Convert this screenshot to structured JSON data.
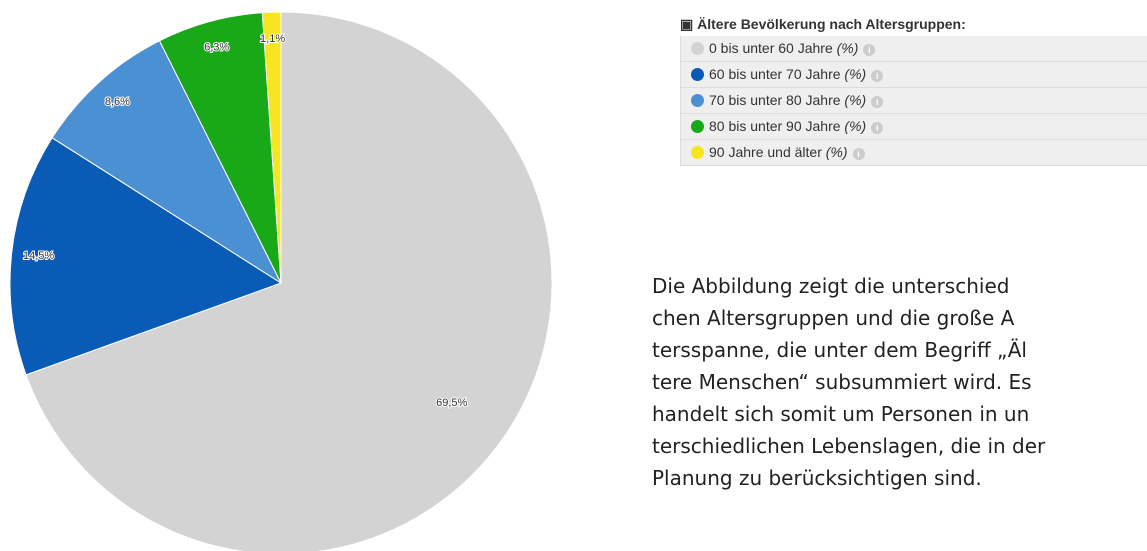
{
  "chart_data": {
    "type": "pie",
    "categories": [
      "0 bis unter 60 Jahre",
      "60 bis unter 70 Jahre",
      "70 bis unter 80 Jahre",
      "80 bis unter 90 Jahre",
      "90 Jahre und älter"
    ],
    "values": [
      69.5,
      14.5,
      8.6,
      6.3,
      1.1
    ],
    "value_labels": [
      "69,5%",
      "14,5%",
      "8,6%",
      "6,3%",
      "1,1%"
    ],
    "colors": [
      "#d3d3d3",
      "#0a5bb5",
      "#4a90d2",
      "#18a818",
      "#f7e51f"
    ],
    "legend_title": "Ältere Bevölkerung nach Altersgruppen:",
    "legend_unit": "(%)"
  },
  "paragraph": [
    "Die Abbildung zeigt die unterschied",
    "chen Altersgruppen und die große A",
    "tersspanne, die unter dem Begriff „Äl",
    "tere Menschen“ subsummiert wird. Es",
    "handelt sich somit um Personen in un",
    "terschiedlichen Lebenslagen, die in der",
    "Planung zu berücksichtigen sind."
  ]
}
